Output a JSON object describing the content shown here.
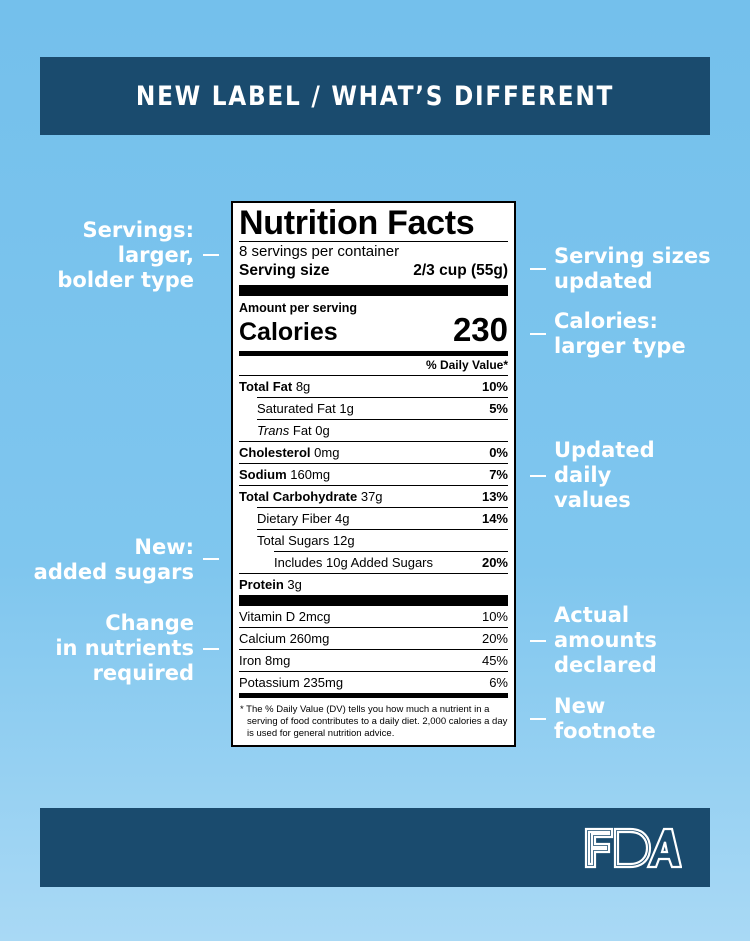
{
  "header": {
    "title": "NEW LABEL / WHAT’S DIFFERENT"
  },
  "left_callouts": {
    "servings": [
      "Servings:",
      "larger,",
      "bolder type"
    ],
    "added_sugars": [
      "New:",
      "added sugars"
    ],
    "nutrients": [
      "Change",
      "in nutrients",
      "required"
    ]
  },
  "right_callouts": {
    "serving_sizes": [
      "Serving sizes",
      "updated"
    ],
    "calories": [
      "Calories:",
      "larger type"
    ],
    "daily_values": [
      "Updated",
      "daily",
      "values"
    ],
    "actual_amounts": [
      "Actual",
      "amounts",
      "declared"
    ],
    "footnote": [
      "New",
      "footnote"
    ]
  },
  "label": {
    "title": "Nutrition Facts",
    "servings_per_container": "8 servings per container",
    "serving_size_label": "Serving size",
    "serving_size_value": "2/3 cup (55g)",
    "amount_per_serving": "Amount per serving",
    "calories_label": "Calories",
    "calories_value": "230",
    "dv_header": "% Daily Value*",
    "rows": [
      {
        "name": "Total Fat",
        "amount": "8g",
        "pct": "10%"
      },
      {
        "name": "Saturated Fat",
        "amount": "1g",
        "pct": "5%"
      },
      {
        "name": "Trans",
        "amount": "Fat 0g",
        "pct": ""
      },
      {
        "name": "Cholesterol",
        "amount": "0mg",
        "pct": "0%"
      },
      {
        "name": "Sodium",
        "amount": "160mg",
        "pct": "7%"
      },
      {
        "name": "Total Carbohydrate",
        "amount": "37g",
        "pct": "13%"
      },
      {
        "name": "Dietary Fiber",
        "amount": "4g",
        "pct": "14%"
      },
      {
        "name": "Total Sugars",
        "amount": "12g",
        "pct": ""
      },
      {
        "name": "Includes 10g Added Sugars",
        "amount": "",
        "pct": "20%"
      },
      {
        "name": "Protein",
        "amount": "3g",
        "pct": ""
      }
    ],
    "vitamins": [
      {
        "name": "Vitamin D 2mcg",
        "pct": "10%"
      },
      {
        "name": "Calcium 260mg",
        "pct": "20%"
      },
      {
        "name": "Iron 8mg",
        "pct": "45%"
      },
      {
        "name": "Potassium 235mg",
        "pct": "6%"
      }
    ],
    "footnote": "* The % Daily Value (DV) tells you how much a nutrient in a serving of food contributes to a daily diet. 2,000 calories a day is used for general nutrition advice."
  },
  "footer": {
    "logo": "FDA"
  },
  "colors": {
    "background": "#74c0ec",
    "banner": "#1a4b6e",
    "text_light": "#ffffff"
  }
}
